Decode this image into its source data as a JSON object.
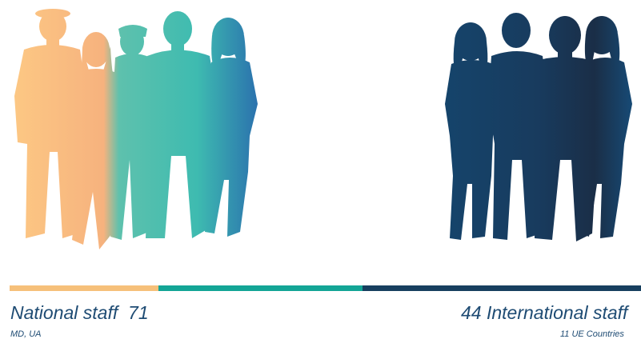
{
  "national": {
    "label": "National staff",
    "count": "71",
    "subtitle": "MD, UA"
  },
  "international": {
    "count": "44",
    "label": "International staff",
    "subtitle": "11 UE Countries"
  },
  "colors": {
    "national_gold": "#f6c07a",
    "national_teal": "#13a596",
    "international_navy": "#173f5f"
  },
  "icons": {
    "national_group": "people-silhouettes-icon",
    "international_group": "people-silhouettes-icon"
  }
}
